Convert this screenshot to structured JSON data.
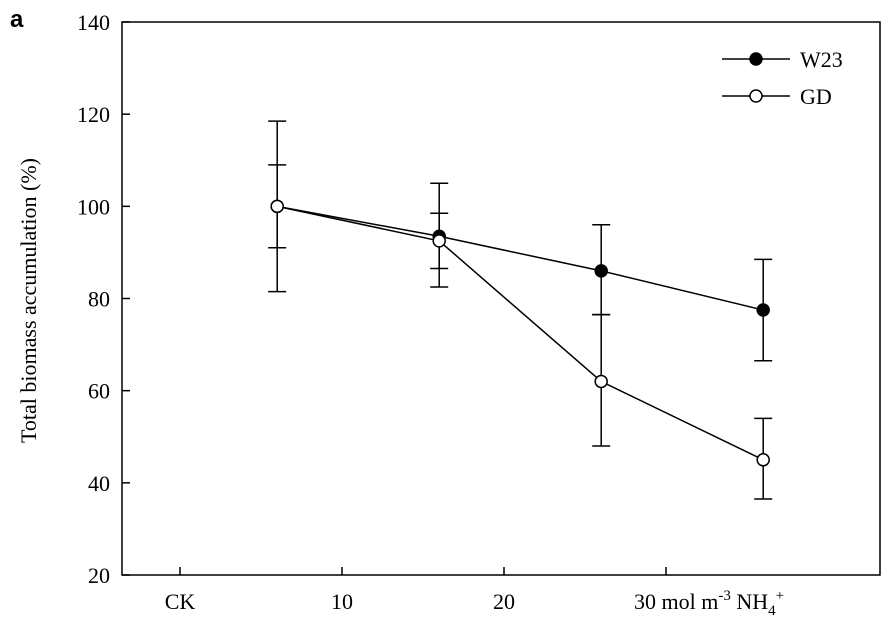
{
  "panel_label": "a",
  "chart_data": {
    "type": "line",
    "title": "",
    "xlabel": "",
    "ylabel": "Total biomass accumulation (%)",
    "ylim": [
      20,
      140
    ],
    "yticks": [
      20,
      40,
      60,
      80,
      100,
      120,
      140
    ],
    "x_tick_labels": [
      "CK",
      "10",
      "20",
      "30"
    ],
    "x_unit_text": {
      "base": "mol m",
      "exp": "-3",
      "ion": "NH",
      "sub": "4",
      "sup": "+"
    },
    "x_values": [
      1,
      2,
      3,
      4
    ],
    "legend_position": "top-right",
    "grid": false,
    "series": [
      {
        "name": "W23",
        "marker": "filled-circle",
        "values": [
          100,
          93.5,
          86,
          77.5
        ],
        "error": [
          [
            91,
            109
          ],
          [
            86.5,
            98.5
          ],
          [
            76.5,
            96
          ],
          [
            66.5,
            88.5
          ]
        ]
      },
      {
        "name": "GD",
        "marker": "open-circle",
        "values": [
          100,
          92.5,
          62,
          45
        ],
        "error": [
          [
            81.5,
            118.5
          ],
          [
            82.5,
            105
          ],
          [
            48,
            76.5
          ],
          [
            36.5,
            54
          ]
        ]
      }
    ]
  }
}
